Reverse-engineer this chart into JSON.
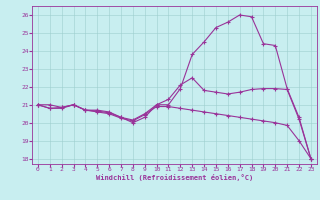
{
  "xlabel": "Windchill (Refroidissement éolien,°C)",
  "background_color": "#c8eef0",
  "line_color": "#993399",
  "xmin": -0.5,
  "xmax": 23.5,
  "ymin": 17.7,
  "ymax": 26.5,
  "yticks": [
    18,
    19,
    20,
    21,
    22,
    23,
    24,
    25,
    26
  ],
  "xticks": [
    0,
    1,
    2,
    3,
    4,
    5,
    6,
    7,
    8,
    9,
    10,
    11,
    12,
    13,
    14,
    15,
    16,
    17,
    18,
    19,
    20,
    21,
    22,
    23
  ],
  "line1_x": [
    0,
    1,
    2,
    3,
    4,
    5,
    6,
    7,
    8,
    9,
    10,
    11,
    12,
    13,
    14,
    15,
    16,
    17,
    18,
    19,
    20,
    21,
    22,
    23
  ],
  "line1_y": [
    21.0,
    21.0,
    20.85,
    21.0,
    20.7,
    20.7,
    20.6,
    20.3,
    20.0,
    20.3,
    21.0,
    21.0,
    21.9,
    23.8,
    24.5,
    25.3,
    25.6,
    26.0,
    25.9,
    24.4,
    24.3,
    21.9,
    20.3,
    18.0
  ],
  "line2_x": [
    0,
    1,
    2,
    3,
    4,
    5,
    6,
    7,
    8,
    9,
    10,
    11,
    12,
    13,
    14,
    15,
    16,
    17,
    18,
    19,
    20,
    21,
    22,
    23
  ],
  "line2_y": [
    21.0,
    20.8,
    20.85,
    21.0,
    20.7,
    20.65,
    20.55,
    20.3,
    20.15,
    20.5,
    21.0,
    21.3,
    22.1,
    22.5,
    21.8,
    21.7,
    21.6,
    21.7,
    21.85,
    21.9,
    21.9,
    21.85,
    20.2,
    18.0
  ],
  "line3_x": [
    0,
    1,
    2,
    3,
    4,
    5,
    6,
    7,
    8,
    9,
    10,
    11,
    12,
    13,
    14,
    15,
    16,
    17,
    18,
    19,
    20,
    21,
    22,
    23
  ],
  "line3_y": [
    21.0,
    20.8,
    20.8,
    21.0,
    20.7,
    20.6,
    20.5,
    20.25,
    20.1,
    20.45,
    20.9,
    20.9,
    20.8,
    20.7,
    20.6,
    20.5,
    20.4,
    20.3,
    20.2,
    20.1,
    20.0,
    19.85,
    19.0,
    18.0
  ]
}
